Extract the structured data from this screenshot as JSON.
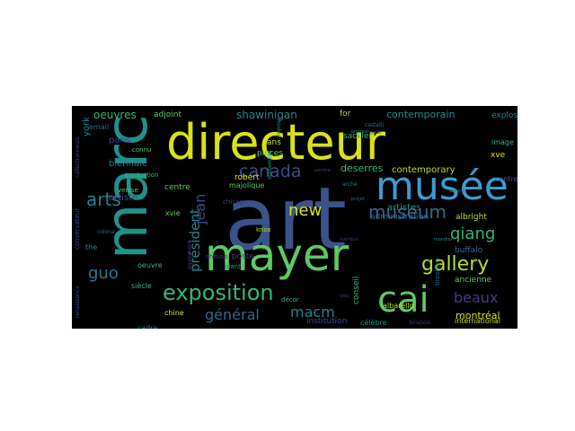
{
  "background": "#000000",
  "colormap": "viridis",
  "words": [
    {
      "text": "art",
      "color": "#3b528b"
    },
    {
      "text": "marc",
      "color": "#21918c"
    },
    {
      "text": "directeur",
      "color": "#d8e219"
    },
    {
      "text": "mayer",
      "color": "#5ec962"
    },
    {
      "text": "musée",
      "color": "#3b9bd1"
    },
    {
      "text": "cai",
      "color": "#5ec962"
    },
    {
      "text": "exposition",
      "color": "#35b779"
    },
    {
      "text": "gallery",
      "color": "#b5de2b"
    },
    {
      "text": "arts",
      "color": "#26828e"
    },
    {
      "text": "canada",
      "color": "#3e4a89"
    },
    {
      "text": "museum",
      "color": "#31688e"
    },
    {
      "text": "qiang",
      "color": "#35b779"
    },
    {
      "text": "guo",
      "color": "#2a788e"
    },
    {
      "text": "new",
      "color": "#d8e219"
    },
    {
      "text": "jean",
      "color": "#3e4a89"
    },
    {
      "text": "président",
      "color": "#26828e"
    },
    {
      "text": "général",
      "color": "#31688e"
    },
    {
      "text": "macm",
      "color": "#26828e"
    },
    {
      "text": "beaux",
      "color": "#443983"
    },
    {
      "text": "shawinigan",
      "color": "#26828e"
    },
    {
      "text": "oeuvres",
      "color": "#35b779"
    },
    {
      "text": "contemporain",
      "color": "#21918c"
    },
    {
      "text": "contemporary",
      "color": "#b5de2b"
    },
    {
      "text": "deserres",
      "color": "#35b779"
    },
    {
      "text": "biennale",
      "color": "#2a788e"
    },
    {
      "text": "montréal",
      "color": "#d8e219"
    },
    {
      "text": "albright",
      "color": "#b5de2b"
    },
    {
      "text": "buffalo",
      "color": "#31688e"
    },
    {
      "text": "artiste",
      "color": "#3e4a89"
    },
    {
      "text": "artistes",
      "color": "#21918c"
    },
    {
      "text": "administration",
      "color": "#31688e"
    },
    {
      "text": "centre",
      "color": "#5ec962"
    },
    {
      "text": "adjoint",
      "color": "#5ec962"
    },
    {
      "text": "paris",
      "color": "#443983"
    },
    {
      "text": "york",
      "color": "#26828e"
    },
    {
      "text": "email",
      "color": "#31688e"
    },
    {
      "text": "ans",
      "color": "#b5de2b"
    },
    {
      "text": "pièces",
      "color": "#5ec962"
    },
    {
      "text": "sackler",
      "color": "#35b779"
    },
    {
      "text": "for",
      "color": "#b5de2b"
    },
    {
      "text": "explosion",
      "color": "#26828e"
    },
    {
      "text": "robert",
      "color": "#d8e219"
    },
    {
      "text": "poste",
      "color": "#443983"
    },
    {
      "text": "conseil",
      "color": "#35b779"
    },
    {
      "text": "ancienne",
      "color": "#5ec962"
    },
    {
      "text": "international",
      "color": "#b5de2b"
    },
    {
      "text": "institution",
      "color": "#3e4a89"
    },
    {
      "text": "célèbre",
      "color": "#21918c"
    },
    {
      "text": "albarello",
      "color": "#b5de2b"
    },
    {
      "text": "siècle",
      "color": "#35b779"
    },
    {
      "text": "chine",
      "color": "#d8e219"
    },
    {
      "text": "cadre",
      "color": "#26828e"
    },
    {
      "text": "oeuvre",
      "color": "#35b779"
    },
    {
      "text": "the",
      "color": "#26828e"
    },
    {
      "text": "xvie",
      "color": "#5ec962"
    },
    {
      "text": "xve",
      "color": "#d8e219"
    },
    {
      "text": "image",
      "color": "#35b779"
    },
    {
      "text": "centres",
      "color": "#3e4a89"
    },
    {
      "text": "production",
      "color": "#35b779"
    },
    {
      "text": "venise",
      "color": "#5ec962"
    },
    {
      "text": "majolique",
      "color": "#5ec962"
    },
    {
      "text": "chicago",
      "color": "#443983"
    },
    {
      "text": "chinois",
      "color": "#443983"
    },
    {
      "text": "décor",
      "color": "#35b779"
    },
    {
      "text": "knox",
      "color": "#b5de2b"
    },
    {
      "text": "plant",
      "color": "#21918c"
    },
    {
      "text": "brooklyn",
      "color": "#2a788e"
    },
    {
      "text": "septembre",
      "color": "#21918c"
    },
    {
      "text": "arche",
      "color": "#2a788e"
    },
    {
      "text": "compose",
      "color": "#26828e"
    },
    {
      "text": "connu",
      "color": "#5ec962"
    },
    {
      "text": "colona",
      "color": "#31688e"
    },
    {
      "text": "conservateur",
      "color": "#3e4a89"
    },
    {
      "text": "castelli",
      "color": "#31688e"
    },
    {
      "text": "brisbois",
      "color": "#443983"
    },
    {
      "text": "collectionneurs",
      "color": "#3e4a89"
    },
    {
      "text": "renaissance",
      "color": "#3e4a89"
    },
    {
      "text": "également",
      "color": "#443983"
    },
    {
      "text": "projet",
      "color": "#31688e"
    },
    {
      "text": "membre",
      "color": "#443983"
    },
    {
      "text": "premier",
      "color": "#26828e"
    },
    {
      "text": "œuvres",
      "color": "#21918c"
    },
    {
      "text": "ville",
      "color": "#443983"
    },
    {
      "text": "cycle",
      "color": "#31688e"
    },
    {
      "text": "peintre",
      "color": "#443983"
    },
    {
      "text": "mondial",
      "color": "#26828e"
    }
  ]
}
